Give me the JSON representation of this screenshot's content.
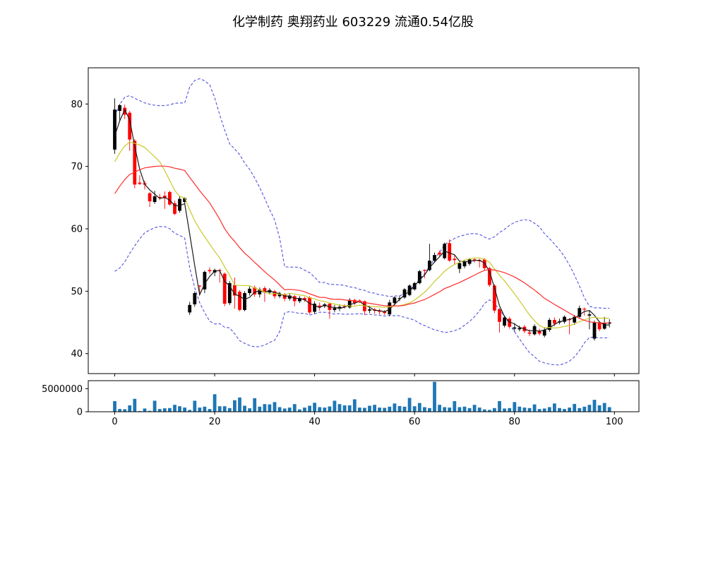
{
  "title": "化学制药  奥翔药业  603229  流通0.54亿股",
  "chart_data": {
    "type": "candlestick",
    "panels": [
      "price",
      "volume"
    ],
    "title": "化学制药  奥翔药业  603229  流通0.54亿股",
    "xlabel": "",
    "ylabel": "",
    "grid": false,
    "legend": "none",
    "x_is_day_index": true,
    "x_axis": {
      "xlim": [
        -5.3,
        104.9
      ],
      "xticks": [
        0,
        20,
        40,
        60,
        80,
        100
      ]
    },
    "price_axis": {
      "ylim": [
        36.8,
        85.8
      ],
      "yticks": [
        40,
        50,
        60,
        70,
        80
      ]
    },
    "volume_axis": {
      "ylim": [
        0,
        6750000
      ],
      "yticks": [
        0,
        5000000
      ],
      "ytick_labels": [
        "0",
        "5000000"
      ]
    },
    "colors": {
      "up": "#000000",
      "down": "#ff0000",
      "volume": "#1f77b4",
      "frame": "#000000"
    },
    "indicators": {
      "moving_averages": [
        {
          "name": "MA3",
          "window": 3,
          "color": "#1a1a1a"
        },
        {
          "name": "MA10",
          "window": 10,
          "color": "#c9c92a"
        },
        {
          "name": "MA20",
          "window": 20,
          "color": "#ff2a2a"
        }
      ],
      "bollinger_band": {
        "window": 20,
        "mult": 2,
        "color": "#5252e0",
        "style": "dashed"
      },
      "warmup_closes_estimated": [
        55,
        56,
        57,
        58,
        59,
        60,
        61,
        62,
        63,
        64,
        65,
        66,
        67,
        68,
        69,
        70,
        71,
        72,
        72.5,
        73
      ]
    },
    "open": [
      72.7,
      78.9,
      79.4,
      78.6,
      74.1,
      67.4,
      67.3,
      65.7,
      64.3,
      65.1,
      65.3,
      65.9,
      64.1,
      62.9,
      64.3,
      46.6,
      47.9,
      50.9,
      50.3,
      53.4,
      53.0,
      53.4,
      52.8,
      48.1,
      51.0,
      49.9,
      47.0,
      49.7,
      50.6,
      49.5,
      50.5,
      49.8,
      50.0,
      49.2,
      49.5,
      48.8,
      49.2,
      48.4,
      48.9,
      49.0,
      46.7,
      47.7,
      47.6,
      48.0,
      47.0,
      47.2,
      47.7,
      47.4,
      48.6,
      48.5,
      48.4,
      46.9,
      47.1,
      46.9,
      46.7,
      46.3,
      48.1,
      48.8,
      49.0,
      49.4,
      50.3,
      51.3,
      53.4,
      53.4,
      54.9,
      56.2,
      55.3,
      57.7,
      55.2,
      53.6,
      54.0,
      54.4,
      55.1,
      55.0,
      55.1,
      53.7,
      50.9,
      47.1,
      44.5,
      45.6,
      44.0,
      43.9,
      44.3,
      43.4,
      43.1,
      43.7,
      42.9,
      43.8,
      45.4,
      45.0,
      45.1,
      45.5,
      45.0,
      45.9,
      47.2,
      46.1,
      42.4,
      45.0,
      44.0,
      44.8
    ],
    "high": [
      80.9,
      80.0,
      79.9,
      78.9,
      74.4,
      68.6,
      67.7,
      65.9,
      66.1,
      65.6,
      66.0,
      66.1,
      64.5,
      65.3,
      65.1,
      48.3,
      50.0,
      51.0,
      53.3,
      53.8,
      53.6,
      53.6,
      53.0,
      51.6,
      52.2,
      50.2,
      50.0,
      50.8,
      50.9,
      50.6,
      50.8,
      50.5,
      50.2,
      49.9,
      49.7,
      49.6,
      49.4,
      49.2,
      49.1,
      49.2,
      48.4,
      48.2,
      48.1,
      48.2,
      47.8,
      47.9,
      47.9,
      48.9,
      48.8,
      48.7,
      48.5,
      47.5,
      47.3,
      47.2,
      47.0,
      48.6,
      49.2,
      49.3,
      50.5,
      51.1,
      51.5,
      53.4,
      53.5,
      57.6,
      56.2,
      56.5,
      57.8,
      58.3,
      55.8,
      54.8,
      55.0,
      55.3,
      55.4,
      55.2,
      55.3,
      53.9,
      51.1,
      47.3,
      46.1,
      45.9,
      44.9,
      44.5,
      44.6,
      43.9,
      44.7,
      44.0,
      44.2,
      45.7,
      45.8,
      45.6,
      46.1,
      45.7,
      46.2,
      47.7,
      47.4,
      47.0,
      45.3,
      45.2,
      45.9,
      45.5
    ],
    "low": [
      72.0,
      77.2,
      77.6,
      72.5,
      66.5,
      67.0,
      66.3,
      63.5,
      64.0,
      64.6,
      63.2,
      63.7,
      62.2,
      62.6,
      63.9,
      46.2,
      47.5,
      49.4,
      49.7,
      52.8,
      52.4,
      51.4,
      47.6,
      47.8,
      47.2,
      46.8,
      46.8,
      49.3,
      49.1,
      49.0,
      48.3,
      49.5,
      48.8,
      48.9,
      48.4,
      48.5,
      47.6,
      48.1,
      48.3,
      46.3,
      46.4,
      46.9,
      47.3,
      45.6,
      46.6,
      46.8,
      47.2,
      47.2,
      47.8,
      48.1,
      46.2,
      46.5,
      46.4,
      46.3,
      46.2,
      46.0,
      47.8,
      48.4,
      48.8,
      49.2,
      50.1,
      51.1,
      52.1,
      53.2,
      54.6,
      55.6,
      55.1,
      54.7,
      54.3,
      52.9,
      53.7,
      54.1,
      54.6,
      53.8,
      53.4,
      50.7,
      46.5,
      43.4,
      44.2,
      44.0,
      43.5,
      43.6,
      43.3,
      42.8,
      42.9,
      42.9,
      42.6,
      43.5,
      44.4,
      44.7,
      44.8,
      43.1,
      44.6,
      45.6,
      46.1,
      43.9,
      42.1,
      43.6,
      43.8,
      44.2
    ],
    "close": [
      79.1,
      79.8,
      78.3,
      74.3,
      67.1,
      67.2,
      67.1,
      64.4,
      65.2,
      65.0,
      64.9,
      63.9,
      62.4,
      64.8,
      64.9,
      47.8,
      49.7,
      50.8,
      53.1,
      53.2,
      53.4,
      53.3,
      48.0,
      51.3,
      49.3,
      47.0,
      49.7,
      50.4,
      49.5,
      50.3,
      49.8,
      50.2,
      49.2,
      49.6,
      48.8,
      49.3,
      48.4,
      48.9,
      48.6,
      46.6,
      48.0,
      47.5,
      47.9,
      47.0,
      47.3,
      47.5,
      47.5,
      48.6,
      48.1,
      48.4,
      46.8,
      47.1,
      46.9,
      46.7,
      46.5,
      48.2,
      49.0,
      48.9,
      50.3,
      50.9,
      51.3,
      53.2,
      53.3,
      54.9,
      55.8,
      55.9,
      57.6,
      54.9,
      55.0,
      54.5,
      54.7,
      55.1,
      55.0,
      54.8,
      53.7,
      51.0,
      46.9,
      45.1,
      45.8,
      44.3,
      44.2,
      44.1,
      43.6,
      43.2,
      44.4,
      43.2,
      43.8,
      45.4,
      44.8,
      45.2,
      45.9,
      45.4,
      45.9,
      47.3,
      47.1,
      46.3,
      45.0,
      43.9,
      44.9,
      45.0
    ],
    "volume": [
      2300000,
      600000,
      550000,
      1400000,
      2800000,
      150000,
      700000,
      200000,
      2400000,
      600000,
      750000,
      800000,
      1500000,
      1200000,
      900000,
      400000,
      2400000,
      900000,
      1100000,
      600000,
      3800000,
      1200000,
      1200000,
      800000,
      2500000,
      3100000,
      1300000,
      750000,
      2950000,
      1100000,
      1650000,
      1600000,
      2100000,
      1000000,
      700000,
      900000,
      1650000,
      500000,
      900000,
      1300000,
      1950000,
      1000000,
      900000,
      1150000,
      2400000,
      1650000,
      1400000,
      1400000,
      2700000,
      900000,
      850000,
      1300000,
      1500000,
      900000,
      850000,
      1100000,
      1800000,
      1250000,
      1100000,
      3000000,
      1200000,
      1900000,
      1000000,
      800000,
      6500000,
      1500000,
      1000000,
      900000,
      2300000,
      1000000,
      1100000,
      800000,
      1500000,
      900000,
      500000,
      400000,
      800000,
      2300000,
      700000,
      800000,
      2100000,
      1100000,
      900000,
      800000,
      1600000,
      600000,
      700000,
      1000000,
      1800000,
      800000,
      600000,
      900000,
      1700000,
      800000,
      1100000,
      1500000,
      2600000,
      1400000,
      1900000,
      1000000
    ]
  }
}
